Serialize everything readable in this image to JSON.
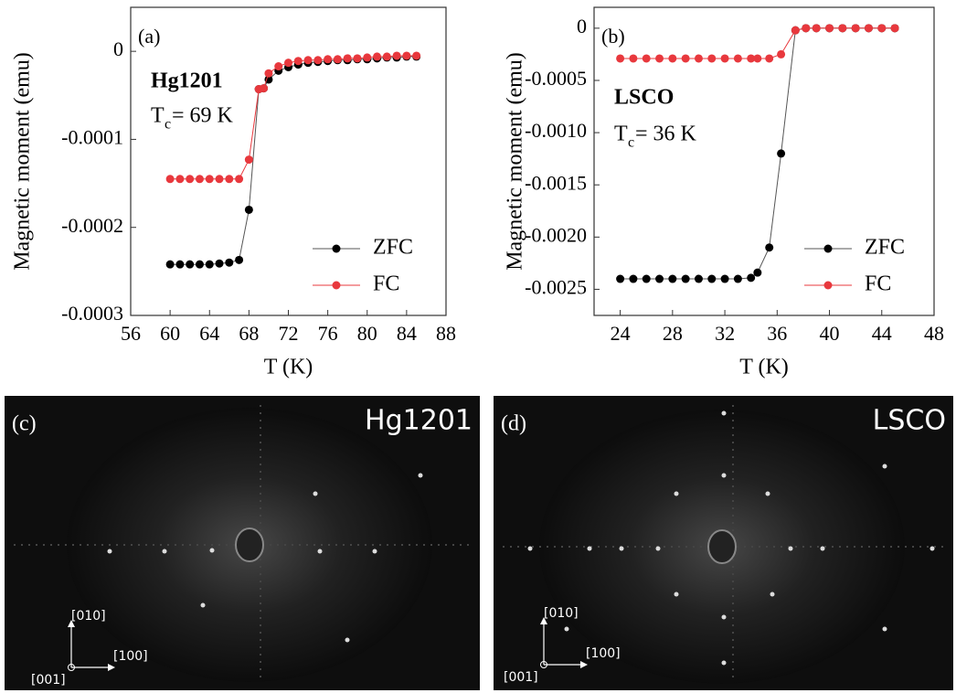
{
  "chart_data": [
    {
      "type": "line",
      "panel": "(a)",
      "sample": "Hg1201",
      "tc_symbol": "T",
      "tc_subscript": "c",
      "tc_value": "= 69 K",
      "x_label": "T (K)",
      "y_label": "Magnetic moment (emu)",
      "x": [
        60,
        61,
        62,
        63,
        64,
        65,
        66,
        67,
        68,
        69,
        69.5,
        70,
        71,
        72,
        73,
        74,
        75,
        76,
        77,
        78,
        79,
        80,
        81,
        82,
        83,
        84,
        85
      ],
      "series": [
        {
          "name": "ZFC",
          "color": "#000000",
          "values": [
            -0.000242,
            -0.000242,
            -0.000242,
            -0.000242,
            -0.000242,
            -0.000241,
            -0.00024,
            -0.000237,
            -0.00018,
            -4.3e-05,
            -4.2e-05,
            -3.2e-05,
            -2.2e-05,
            -1.8e-05,
            -1.5e-05,
            -1.3e-05,
            -1.2e-05,
            -1.1e-05,
            -1e-05,
            -1e-05,
            -9e-06,
            -9e-06,
            -8e-06,
            -7e-06,
            -7e-06,
            -6e-06,
            -6e-06
          ]
        },
        {
          "name": "FC",
          "color": "#e8383d",
          "values": [
            -0.000145,
            -0.000145,
            -0.000145,
            -0.000145,
            -0.000145,
            -0.000145,
            -0.000145,
            -0.000145,
            -0.000123,
            -4.3e-05,
            -4.2e-05,
            -2.5e-05,
            -1.7e-05,
            -1.3e-05,
            -1.1e-05,
            -1e-05,
            -1e-05,
            -9e-06,
            -9e-06,
            -8e-06,
            -8e-06,
            -7e-06,
            -6e-06,
            -6e-06,
            -5e-06,
            -5e-06,
            -5e-06
          ]
        }
      ],
      "xlim": [
        56,
        88
      ],
      "xticks": [
        56,
        60,
        64,
        68,
        72,
        76,
        80,
        84,
        88
      ],
      "ylim": [
        -0.0003,
        5e-05
      ],
      "yticks": [
        0,
        -0.0001,
        -0.0002,
        -0.0003
      ],
      "legend": "lower right"
    },
    {
      "type": "line",
      "panel": "(b)",
      "sample": "LSCO",
      "tc_symbol": "T",
      "tc_subscript": "c",
      "tc_value": "= 36 K",
      "x_label": "T (K)",
      "y_label": "Magnetic moment (emu)",
      "x": [
        24,
        25,
        26,
        27,
        28,
        29,
        30,
        31,
        32,
        33,
        34,
        34.5,
        35.4,
        36.3,
        37.4,
        38.2,
        39,
        40,
        41,
        42,
        43,
        44,
        45
      ],
      "series": [
        {
          "name": "ZFC",
          "color": "#000000",
          "values": [
            -0.0024,
            -0.0024,
            -0.0024,
            -0.0024,
            -0.0024,
            -0.0024,
            -0.0024,
            -0.0024,
            -0.0024,
            -0.0024,
            -0.00239,
            -0.00234,
            -0.0021,
            -0.0012,
            -2e-05,
            0,
            0,
            0,
            0,
            0,
            0,
            0,
            0
          ]
        },
        {
          "name": "FC",
          "color": "#e8383d",
          "values": [
            -0.00029,
            -0.00029,
            -0.00029,
            -0.00029,
            -0.00029,
            -0.00029,
            -0.00029,
            -0.00029,
            -0.00029,
            -0.00029,
            -0.00029,
            -0.00029,
            -0.00029,
            -0.00025,
            -2e-05,
            0,
            0,
            0,
            0,
            0,
            0,
            0,
            0
          ]
        }
      ],
      "xlim": [
        22,
        48
      ],
      "xticks": [
        24,
        28,
        32,
        36,
        40,
        44,
        48
      ],
      "ylim": [
        -0.00275,
        0.0002
      ],
      "yticks": [
        0,
        -0.0005,
        {
          "value": -0.001,
          "label": "-0.0010"
        },
        -0.0015,
        {
          "value": -0.002,
          "label": "-0.0020"
        },
        -0.0025
      ],
      "legend": "lower right"
    }
  ],
  "images": [
    {
      "panel": "(c)",
      "sample": "Hg1201",
      "directions": [
        "[010]",
        "[100]",
        "[001]"
      ]
    },
    {
      "panel": "(d)",
      "sample": "LSCO",
      "directions": [
        "[010]",
        "[100]",
        "[001]"
      ]
    }
  ]
}
